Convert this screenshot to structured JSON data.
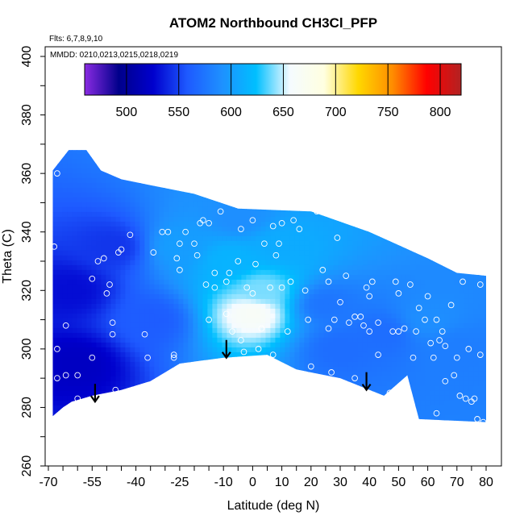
{
  "chart_data": {
    "type": "heatmap",
    "title": "ATOM2 Northbound CH3Cl_PFP",
    "flights_note": "Flts: 6,7,8,9,10",
    "dates_note": "MMDD: 0210,0213,0215,0218,0219",
    "xlabel": "Latitude (deg N)",
    "ylabel": "Theta (C)",
    "xlim": [
      -70,
      80
    ],
    "ylim": [
      260,
      400
    ],
    "x_ticks": [
      "-70",
      "-55",
      "-40",
      "-25",
      "-10",
      "0",
      "10",
      "20",
      "30",
      "40",
      "50",
      "60",
      "70",
      "80"
    ],
    "x_tick_values": [
      -70,
      -55,
      -40,
      -25,
      -10,
      0,
      10,
      20,
      30,
      40,
      50,
      60,
      70,
      80
    ],
    "y_ticks": [
      "260",
      "280",
      "300",
      "320",
      "340",
      "360",
      "380",
      "400"
    ],
    "y_tick_values": [
      260,
      280,
      300,
      320,
      340,
      360,
      380,
      400
    ],
    "colorbar": {
      "range": [
        460,
        820
      ],
      "tick_labels": [
        "500",
        "550",
        "600",
        "650",
        "700",
        "750",
        "800"
      ],
      "tick_values": [
        500,
        550,
        600,
        650,
        700,
        750,
        800
      ],
      "colors": [
        "#8a2be2",
        "#00008b",
        "#0000cd",
        "#1e5aff",
        "#1e90ff",
        "#00bfff",
        "#f5fbff",
        "#ffffe0",
        "#ffd700",
        "#ff8c00",
        "#ff0000",
        "#b22222"
      ]
    },
    "field_outline": {
      "upper": [
        [
          -68.5,
          331
        ],
        [
          -68.5,
          361
        ],
        [
          -63,
          368
        ],
        [
          -57,
          368
        ],
        [
          -52,
          361
        ],
        [
          -45,
          358
        ],
        [
          -35,
          356
        ],
        [
          -20,
          353
        ],
        [
          -5,
          348
        ],
        [
          20,
          347
        ],
        [
          40,
          340
        ],
        [
          60,
          331
        ],
        [
          70,
          326
        ],
        [
          80,
          325
        ]
      ],
      "lower": [
        [
          80,
          275
        ],
        [
          57,
          276
        ],
        [
          53,
          291
        ],
        [
          45,
          284
        ],
        [
          30,
          290
        ],
        [
          15,
          293
        ],
        [
          5,
          298
        ],
        [
          -10,
          297
        ],
        [
          -25,
          295
        ],
        [
          -35,
          289
        ],
        [
          -45,
          286
        ],
        [
          -55,
          284
        ],
        [
          -62,
          282
        ],
        [
          -65,
          280
        ],
        [
          -68.5,
          277
        ]
      ]
    },
    "value_field_anchors": [
      {
        "lat": -62,
        "theta": 320,
        "value": 530
      },
      {
        "lat": -48,
        "theta": 335,
        "value": 545
      },
      {
        "lat": -35,
        "theta": 310,
        "value": 560
      },
      {
        "lat": -25,
        "theta": 335,
        "value": 600
      },
      {
        "lat": -8,
        "theta": 330,
        "value": 615
      },
      {
        "lat": -5,
        "theta": 345,
        "value": 590
      },
      {
        "lat": 0,
        "theta": 312,
        "value": 665
      },
      {
        "lat": 3,
        "theta": 320,
        "value": 640
      },
      {
        "lat": 10,
        "theta": 335,
        "value": 610
      },
      {
        "lat": 25,
        "theta": 315,
        "value": 575
      },
      {
        "lat": 45,
        "theta": 305,
        "value": 570
      },
      {
        "lat": 60,
        "theta": 310,
        "value": 590
      },
      {
        "lat": 70,
        "theta": 300,
        "value": 580
      },
      {
        "lat": -60,
        "theta": 295,
        "value": 520
      },
      {
        "lat": 30,
        "theta": 300,
        "value": 570
      }
    ],
    "sample_points": [
      [
        -68,
        335
      ],
      [
        -67,
        360
      ],
      [
        -67,
        300
      ],
      [
        -67,
        290
      ],
      [
        -64,
        308
      ],
      [
        -64,
        291
      ],
      [
        -60,
        291
      ],
      [
        -60,
        283
      ],
      [
        -55,
        297
      ],
      [
        -55,
        324
      ],
      [
        -53,
        330
      ],
      [
        -51,
        331
      ],
      [
        -50,
        319
      ],
      [
        -49,
        322
      ],
      [
        -48,
        305
      ],
      [
        -48,
        309
      ],
      [
        -47,
        286
      ],
      [
        -46,
        333
      ],
      [
        -45,
        334
      ],
      [
        -42,
        339
      ],
      [
        -37,
        305
      ],
      [
        -36,
        297
      ],
      [
        -34,
        333
      ],
      [
        -31,
        340
      ],
      [
        -29,
        340
      ],
      [
        -27,
        298
      ],
      [
        -27,
        297
      ],
      [
        -26,
        331
      ],
      [
        -25,
        327
      ],
      [
        -25,
        336
      ],
      [
        -23,
        340
      ],
      [
        -20,
        336
      ],
      [
        -19,
        332
      ],
      [
        -18,
        343
      ],
      [
        -17,
        344
      ],
      [
        -16,
        322
      ],
      [
        -15,
        310
      ],
      [
        -15,
        343
      ],
      [
        -13,
        321
      ],
      [
        -13,
        326
      ],
      [
        -11,
        347
      ],
      [
        -9,
        312
      ],
      [
        -9,
        323
      ],
      [
        -8,
        326
      ],
      [
        -7,
        306
      ],
      [
        -5,
        330
      ],
      [
        -4,
        341
      ],
      [
        -4,
        303
      ],
      [
        -3,
        299
      ],
      [
        -2,
        321
      ],
      [
        0,
        344
      ],
      [
        0,
        319
      ],
      [
        1,
        329
      ],
      [
        2,
        300
      ],
      [
        3,
        307
      ],
      [
        4,
        336
      ],
      [
        6,
        321
      ],
      [
        7,
        342
      ],
      [
        7,
        298
      ],
      [
        8,
        332
      ],
      [
        9,
        336
      ],
      [
        10,
        343
      ],
      [
        10,
        321
      ],
      [
        12,
        306
      ],
      [
        13,
        323
      ],
      [
        14,
        344
      ],
      [
        16,
        341
      ],
      [
        18,
        320
      ],
      [
        19,
        310
      ],
      [
        20,
        294
      ],
      [
        22,
        347
      ],
      [
        24,
        327
      ],
      [
        26,
        323
      ],
      [
        26,
        307
      ],
      [
        27,
        292
      ],
      [
        28,
        310
      ],
      [
        29,
        338
      ],
      [
        30,
        316
      ],
      [
        32,
        325
      ],
      [
        33,
        309
      ],
      [
        35,
        290
      ],
      [
        35,
        311
      ],
      [
        37,
        311
      ],
      [
        38,
        308
      ],
      [
        39,
        321
      ],
      [
        40,
        318
      ],
      [
        40,
        306
      ],
      [
        41,
        323
      ],
      [
        43,
        309
      ],
      [
        43,
        298
      ],
      [
        47,
        285
      ],
      [
        48,
        306
      ],
      [
        49,
        323
      ],
      [
        50,
        319
      ],
      [
        50,
        306
      ],
      [
        52,
        287
      ],
      [
        52,
        307
      ],
      [
        54,
        322
      ],
      [
        55,
        297
      ],
      [
        56,
        306
      ],
      [
        57,
        314
      ],
      [
        59,
        310
      ],
      [
        60,
        318
      ],
      [
        61,
        302
      ],
      [
        62,
        297
      ],
      [
        63,
        310
      ],
      [
        63,
        278
      ],
      [
        64,
        303
      ],
      [
        65,
        306
      ],
      [
        66,
        289
      ],
      [
        66,
        301
      ],
      [
        68,
        315
      ],
      [
        69,
        291
      ],
      [
        70,
        297
      ],
      [
        71,
        284
      ],
      [
        72,
        323
      ],
      [
        73,
        283
      ],
      [
        74,
        300
      ],
      [
        75,
        282
      ],
      [
        76,
        283
      ],
      [
        77,
        276
      ],
      [
        78,
        298
      ],
      [
        78,
        322
      ],
      [
        79,
        275
      ]
    ],
    "arrows": [
      {
        "lat": -54,
        "theta": 282
      },
      {
        "lat": -9,
        "theta": 297
      },
      {
        "lat": 39,
        "theta": 286
      }
    ],
    "grid": false,
    "legend": "top"
  }
}
